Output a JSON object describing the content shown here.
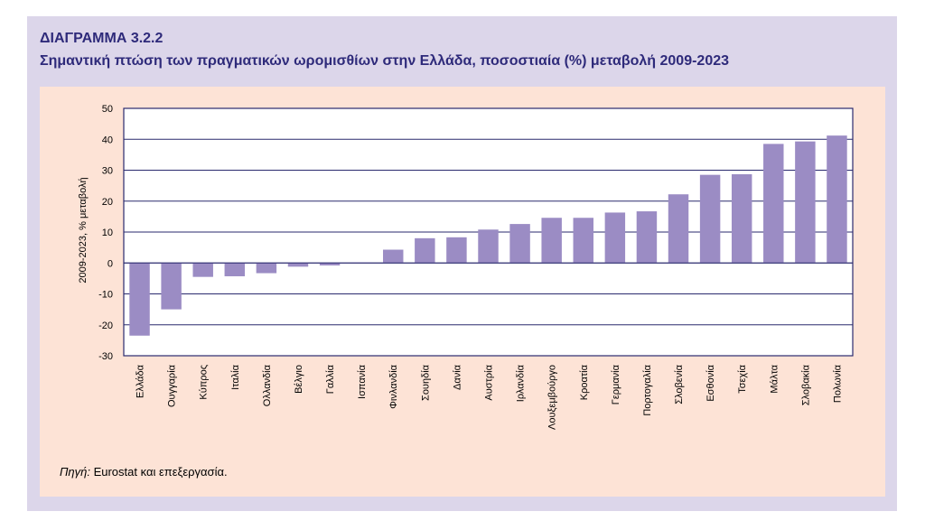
{
  "header": {
    "title": "ΔΙΑΓΡΑΜΜΑ 3.2.2",
    "subtitle": "Σημαντική πτώση των πραγματικών ωρομισθίων στην Ελλάδα, ποσοστιαία (%) μεταβολή 2009-2023"
  },
  "source": {
    "label": "Πηγή:",
    "text": " Eurostat και επεξεργασία."
  },
  "colors": {
    "bar": "#9b8cc4",
    "plot_border": "#2a2a6e",
    "gridline": "#2a2a6e",
    "title": "#2e2a7a",
    "panel": "#dcd6ea",
    "inner": "#fde3d6"
  },
  "chart_data": {
    "type": "bar",
    "title": "",
    "xlabel": "",
    "ylabel": "2009-2023, % μεταβολή",
    "ylim": [
      -30,
      50
    ],
    "yticks": [
      -30,
      -20,
      -10,
      0,
      10,
      20,
      30,
      40,
      50
    ],
    "grid": true,
    "categories": [
      "Ελλάδα",
      "Ουγγαρία",
      "Κύπρος",
      "Ιταλία",
      "Ολλανδία",
      "Βέλγιο",
      "Γαλλία",
      "Ισπανία",
      "Φινλανδία",
      "Σουηδία",
      "Δανία",
      "Αυστρία",
      "Ιρλανδία",
      "Λουξεμβούργο",
      "Κροατία",
      "Γερμανία",
      "Πορτογαλία",
      "Σλοβενία",
      "Εσθονία",
      "Τσεχία",
      "Μάλτα",
      "Σλοβακία",
      "Πολωνία"
    ],
    "values": [
      -23.5,
      -15,
      -4.5,
      -4.3,
      -3.3,
      -1.2,
      -0.8,
      0.2,
      4.3,
      8,
      8.3,
      10.8,
      12.6,
      14.6,
      14.6,
      16.3,
      16.7,
      22.2,
      28.5,
      28.7,
      38.5,
      39.3,
      41.2
    ]
  }
}
